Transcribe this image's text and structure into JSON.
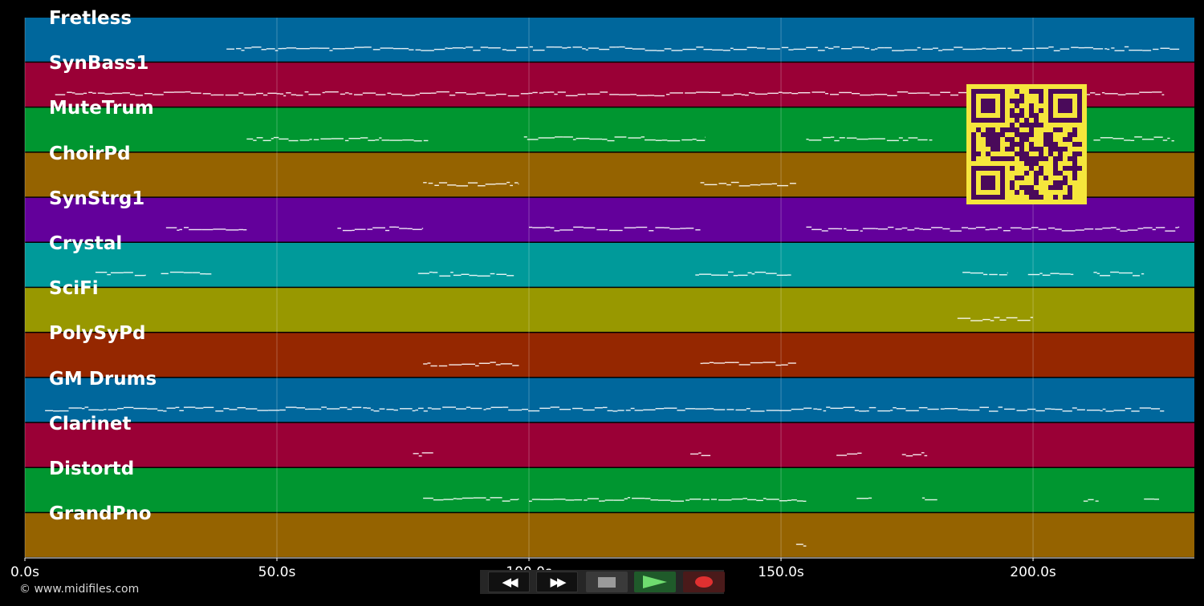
{
  "timeline": {
    "max_seconds": 232,
    "ticks": [
      {
        "value": 0,
        "label": "0.0s"
      },
      {
        "value": 50,
        "label": "50.0s"
      },
      {
        "value": 100,
        "label": "100.0s"
      },
      {
        "value": 150,
        "label": "150.0s"
      },
      {
        "value": 200,
        "label": "200.0s"
      }
    ]
  },
  "tracks": [
    {
      "name": "Fretless",
      "color": "#00679c",
      "notes": [
        [
          40,
          229
        ]
      ]
    },
    {
      "name": "SynBass1",
      "color": "#9a0036",
      "notes": [
        [
          6,
          226
        ]
      ]
    },
    {
      "name": "MuteTrum",
      "color": "#009630",
      "notes": [
        [
          44,
          80
        ],
        [
          99,
          135
        ],
        [
          155,
          180
        ],
        [
          212,
          228
        ]
      ]
    },
    {
      "name": "ChoirPd",
      "color": "#956300",
      "notes": [
        [
          79,
          98
        ],
        [
          134,
          153
        ]
      ]
    },
    {
      "name": "SynStrg1",
      "color": "#63009b",
      "notes": [
        [
          28,
          44
        ],
        [
          62,
          79
        ],
        [
          100,
          134
        ],
        [
          155,
          229
        ]
      ]
    },
    {
      "name": "Crystal",
      "color": "#009a9a",
      "notes": [
        [
          14,
          24
        ],
        [
          27,
          37
        ],
        [
          78,
          97
        ],
        [
          133,
          152
        ],
        [
          186,
          195
        ],
        [
          199,
          208
        ],
        [
          212,
          222
        ]
      ]
    },
    {
      "name": "SciFi",
      "color": "#989800",
      "notes": [
        [
          185,
          200
        ]
      ]
    },
    {
      "name": "PolySyPd",
      "color": "#952700",
      "notes": [
        [
          79,
          98
        ],
        [
          134,
          153
        ]
      ]
    },
    {
      "name": "GM Drums",
      "color": "#00679c",
      "notes": [
        [
          4,
          226
        ]
      ]
    },
    {
      "name": "Clarinet",
      "color": "#9a0036",
      "notes": [
        [
          77,
          81
        ],
        [
          132,
          136
        ],
        [
          161,
          166
        ],
        [
          174,
          179
        ]
      ]
    },
    {
      "name": "Distortd",
      "color": "#009630",
      "notes": [
        [
          79,
          98
        ],
        [
          100,
          155
        ],
        [
          165,
          168
        ],
        [
          178,
          181
        ],
        [
          210,
          213
        ],
        [
          222,
          225
        ]
      ]
    },
    {
      "name": "GrandPno",
      "color": "#956300",
      "notes": [
        [
          153,
          155
        ]
      ]
    }
  ],
  "transport": {
    "rewind_icon": "rewind-icon",
    "fast_forward_icon": "fast-forward-icon",
    "stop_icon": "stop-icon",
    "play_icon": "play-icon",
    "record_icon": "record-icon"
  },
  "copyright": "© www.midifiles.com",
  "qr_icon": "qr-code-icon"
}
